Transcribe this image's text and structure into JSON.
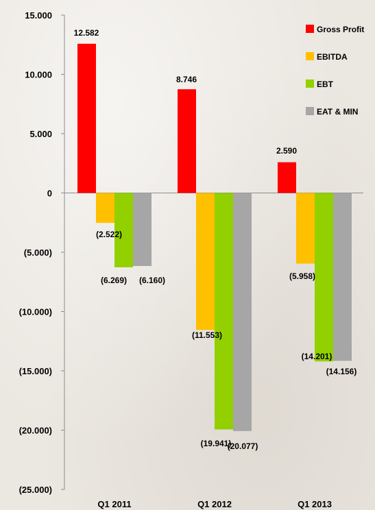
{
  "chart_data": {
    "type": "bar",
    "categories": [
      "Q1 2011",
      "Q1 2012",
      "Q1 2013"
    ],
    "series": [
      {
        "name": "Gross Profit",
        "color": "#ff0000",
        "values": [
          12582,
          8746,
          2590
        ],
        "labels": [
          "12.582",
          "8.746",
          "2.590"
        ]
      },
      {
        "name": "EBITDA",
        "color": "#ffc000",
        "values": [
          -2522,
          -11553,
          -5958
        ],
        "labels": [
          "(2.522)",
          "(11.553)",
          "(5.958)"
        ]
      },
      {
        "name": "EBT",
        "color": "#92d000",
        "values": [
          -6269,
          -19941,
          -14201
        ],
        "labels": [
          "(6.269)",
          "(19.941)",
          "(14.201)"
        ]
      },
      {
        "name": "EAT & MIN",
        "color": "#a6a6a6",
        "values": [
          -6160,
          -20077,
          -14156
        ],
        "labels": [
          "(6.160)",
          "(20.077)",
          "(14.156)"
        ]
      }
    ],
    "ylim": [
      -25000,
      15000
    ],
    "yticks": [
      15000,
      10000,
      5000,
      0,
      -5000,
      -10000,
      -15000,
      -20000,
      -25000
    ],
    "ytick_labels": [
      "15.000",
      "10.000",
      "5.000",
      "0",
      "(5.000)",
      "(10.000)",
      "(15.000)",
      "(20.000)",
      "(25.000)"
    ],
    "legend_position": "top-right",
    "grid": false
  }
}
